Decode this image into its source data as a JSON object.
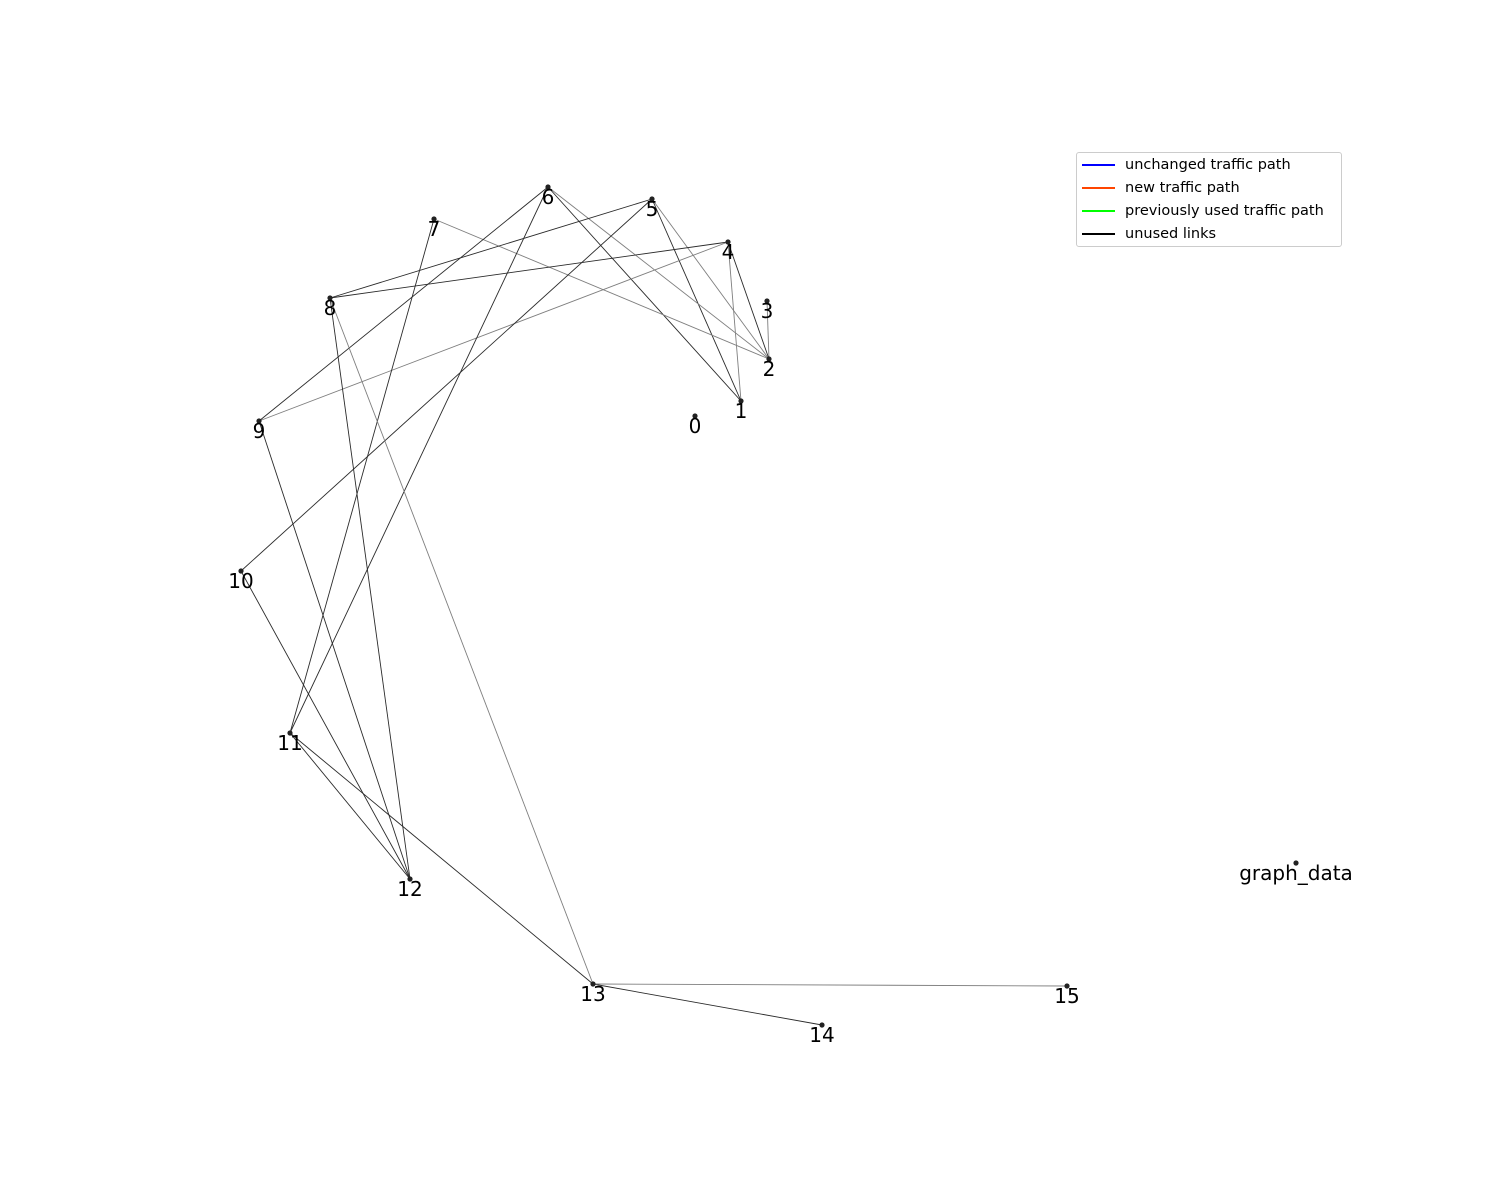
{
  "legend": {
    "items": [
      {
        "label": "unchanged traffic path",
        "color": "#0000ff"
      },
      {
        "label": "new traffic path",
        "color": "#ff4500"
      },
      {
        "label": "previously used traffic path",
        "color": "#00ff00"
      },
      {
        "label": "unused links",
        "color": "#000000"
      }
    ]
  },
  "graph": {
    "nodes": [
      {
        "id": "0",
        "label": "0"
      },
      {
        "id": "1",
        "label": "1"
      },
      {
        "id": "2",
        "label": "2"
      },
      {
        "id": "3",
        "label": "3"
      },
      {
        "id": "4",
        "label": "4"
      },
      {
        "id": "5",
        "label": "5"
      },
      {
        "id": "6",
        "label": "6"
      },
      {
        "id": "7",
        "label": "7"
      },
      {
        "id": "8",
        "label": "8"
      },
      {
        "id": "9",
        "label": "9"
      },
      {
        "id": "10",
        "label": "10"
      },
      {
        "id": "11",
        "label": "11"
      },
      {
        "id": "12",
        "label": "12"
      },
      {
        "id": "13",
        "label": "13"
      },
      {
        "id": "14",
        "label": "14"
      },
      {
        "id": "15",
        "label": "15"
      },
      {
        "id": "graph_data",
        "label": "graph_data"
      }
    ],
    "edges": [
      {
        "source": "1",
        "target": "4",
        "status": "unused",
        "shade": "light"
      },
      {
        "source": "1",
        "target": "5",
        "status": "unused",
        "shade": "dark"
      },
      {
        "source": "1",
        "target": "6",
        "status": "unused",
        "shade": "dark"
      },
      {
        "source": "2",
        "target": "3",
        "status": "unused",
        "shade": "light"
      },
      {
        "source": "2",
        "target": "4",
        "status": "unused",
        "shade": "dark"
      },
      {
        "source": "2",
        "target": "5",
        "status": "unused",
        "shade": "light"
      },
      {
        "source": "2",
        "target": "6",
        "status": "unused",
        "shade": "light"
      },
      {
        "source": "2",
        "target": "7",
        "status": "unused",
        "shade": "light"
      },
      {
        "source": "4",
        "target": "8",
        "status": "unused",
        "shade": "dark"
      },
      {
        "source": "4",
        "target": "9",
        "status": "unused",
        "shade": "light"
      },
      {
        "source": "5",
        "target": "8",
        "status": "unused",
        "shade": "dark"
      },
      {
        "source": "5",
        "target": "10",
        "status": "unused",
        "shade": "dark"
      },
      {
        "source": "6",
        "target": "9",
        "status": "unused",
        "shade": "dark"
      },
      {
        "source": "6",
        "target": "11",
        "status": "unused",
        "shade": "dark"
      },
      {
        "source": "7",
        "target": "11",
        "status": "unused",
        "shade": "dark"
      },
      {
        "source": "8",
        "target": "12",
        "status": "unused",
        "shade": "dark"
      },
      {
        "source": "8",
        "target": "13",
        "status": "unused",
        "shade": "light"
      },
      {
        "source": "9",
        "target": "12",
        "status": "unused",
        "shade": "dark"
      },
      {
        "source": "10",
        "target": "12",
        "status": "unused",
        "shade": "dark"
      },
      {
        "source": "11",
        "target": "12",
        "status": "unused",
        "shade": "dark"
      },
      {
        "source": "11",
        "target": "13",
        "status": "unused",
        "shade": "dark"
      },
      {
        "source": "13",
        "target": "14",
        "status": "unused",
        "shade": "dark"
      },
      {
        "source": "13",
        "target": "15",
        "status": "unused",
        "shade": "light"
      }
    ]
  }
}
